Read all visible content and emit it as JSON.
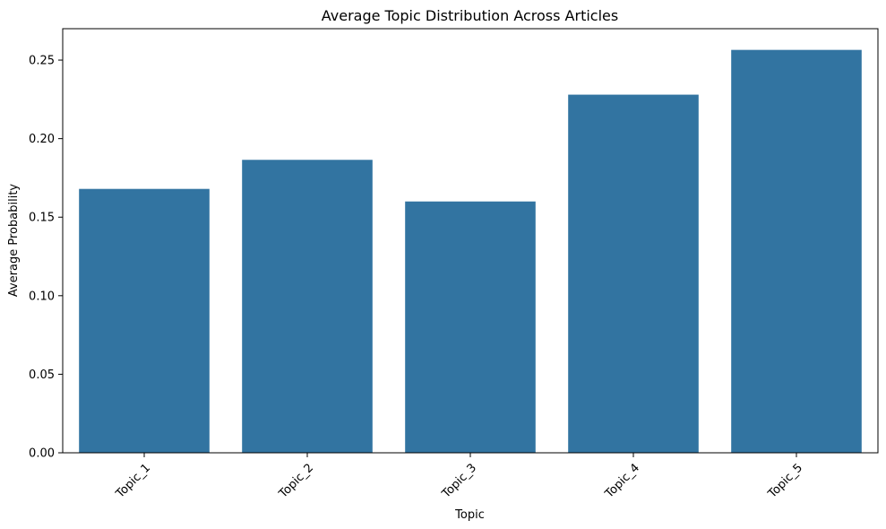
{
  "chart_data": {
    "type": "bar",
    "title": "Average Topic Distribution Across Articles",
    "xlabel": "Topic",
    "ylabel": "Average Probability",
    "categories": [
      "Topic_1",
      "Topic_2",
      "Topic_3",
      "Topic_4",
      "Topic_5"
    ],
    "values": [
      0.168,
      0.1865,
      0.16,
      0.228,
      0.2565
    ],
    "ylim": [
      0,
      0.27
    ],
    "yticks": [
      "0.00",
      "0.05",
      "0.10",
      "0.15",
      "0.20",
      "0.25"
    ],
    "ytick_values": [
      0,
      0.05,
      0.1,
      0.15,
      0.2,
      0.25
    ],
    "grid": false,
    "legend": "none",
    "bar_color": "#3274a1"
  }
}
